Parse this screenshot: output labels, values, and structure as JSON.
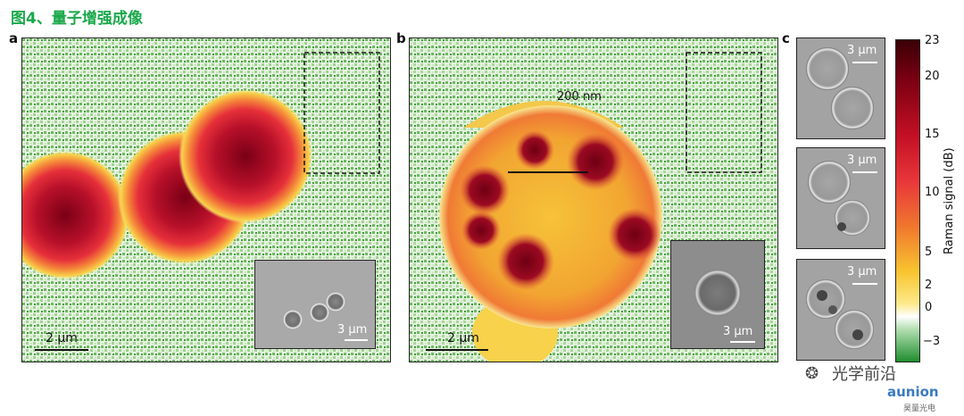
{
  "figure": {
    "title": "图4、量子增强成像",
    "panels": {
      "a": {
        "label": "a",
        "scalebar": "2 μm",
        "inset_scalebar": "3 μm"
      },
      "b": {
        "label": "b",
        "scalebar": "2 μm",
        "inset_scalebar": "3 μm",
        "annotation": "200 nm"
      },
      "c": {
        "label": "c",
        "cell_scalebars": [
          "3 μm",
          "3 μm",
          "3 μm"
        ]
      }
    },
    "colorbar": {
      "label": "Raman signal (dB)",
      "ticks": [
        "23",
        "20",
        "15",
        "10",
        "5",
        "2",
        "0",
        "−3"
      ],
      "colors": [
        "#3a0006",
        "#8b0015",
        "#e0212f",
        "#f0762c",
        "#f8c430",
        "#ffffff",
        "#1f8f2f"
      ]
    }
  },
  "watermark": {
    "text1": "光学前沿",
    "text2": "aunion",
    "text3": "昊量光电"
  }
}
